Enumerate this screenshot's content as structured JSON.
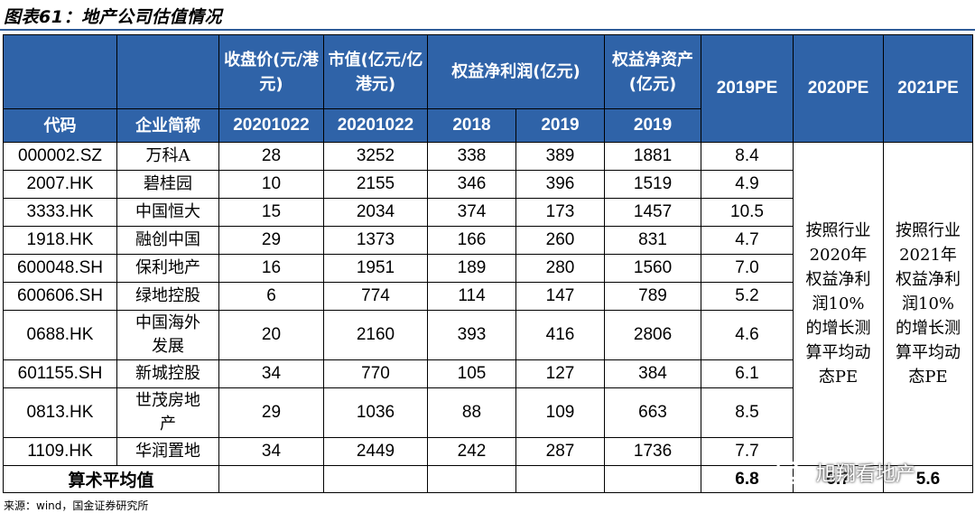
{
  "title": "图表61：地产公司估值情况",
  "header": {
    "r1": {
      "c3": "收盘价(元/港元)",
      "c4": "市值(亿元/亿港元)",
      "c56": "权益净利润(亿元)",
      "c7": "权益净资产(亿元)",
      "c8": "2019PE",
      "c9": "2020PE",
      "c10": "2021PE"
    },
    "r2": {
      "c1": "代码",
      "c2": "企业简称",
      "c3": "20201022",
      "c4": "20201022",
      "c5": "2018",
      "c6": "2019",
      "c7": "2019"
    }
  },
  "rows": [
    {
      "code": "000002.SZ",
      "name": "万科A",
      "price": "28",
      "mcap": "3252",
      "np2018": "338",
      "np2019": "389",
      "equity": "1881",
      "pe2019": "8.4"
    },
    {
      "code": "2007.HK",
      "name": "碧桂园",
      "price": "10",
      "mcap": "2155",
      "np2018": "346",
      "np2019": "396",
      "equity": "1519",
      "pe2019": "4.9"
    },
    {
      "code": "3333.HK",
      "name": "中国恒大",
      "price": "15",
      "mcap": "2034",
      "np2018": "374",
      "np2019": "173",
      "equity": "1457",
      "pe2019": "10.5"
    },
    {
      "code": "1918.HK",
      "name": "融创中国",
      "price": "29",
      "mcap": "1373",
      "np2018": "166",
      "np2019": "260",
      "equity": "831",
      "pe2019": "4.7"
    },
    {
      "code": "600048.SH",
      "name": "保利地产",
      "price": "16",
      "mcap": "1951",
      "np2018": "189",
      "np2019": "280",
      "equity": "1560",
      "pe2019": "7.0"
    },
    {
      "code": "600606.SH",
      "name": "绿地控股",
      "price": "6",
      "mcap": "774",
      "np2018": "114",
      "np2019": "147",
      "equity": "789",
      "pe2019": "5.2"
    },
    {
      "code": "0688.HK",
      "name": "中国海外发展",
      "price": "20",
      "mcap": "2160",
      "np2018": "393",
      "np2019": "416",
      "equity": "2806",
      "pe2019": "4.6"
    },
    {
      "code": "601155.SH",
      "name": "新城控股",
      "price": "34",
      "mcap": "770",
      "np2018": "105",
      "np2019": "127",
      "equity": "384",
      "pe2019": "6.1"
    },
    {
      "code": "0813.HK",
      "name": "世茂房地产",
      "price": "29",
      "mcap": "1036",
      "np2018": "88",
      "np2019": "109",
      "equity": "663",
      "pe2019": "8.5"
    },
    {
      "code": "1109.HK",
      "name": "华润置地",
      "price": "34",
      "mcap": "2449",
      "np2018": "242",
      "np2019": "287",
      "equity": "1736",
      "pe2019": "7.7"
    }
  ],
  "notes": {
    "pe2020": "按照行业2020年权益净利润10%的增长测算平均动态PE",
    "pe2021": "按照行业2021年权益净利润10%的增长测算平均动态PE"
  },
  "average": {
    "label": "算术平均值",
    "pe2019": "6.8",
    "pe2020": "6.7",
    "pe2021": "5.6"
  },
  "source": "来源：wind，国金证券研究所",
  "watermark": "旭翔看地产",
  "colors": {
    "header_bg": "#2f63a8",
    "title_rule": "#2e5b98"
  }
}
